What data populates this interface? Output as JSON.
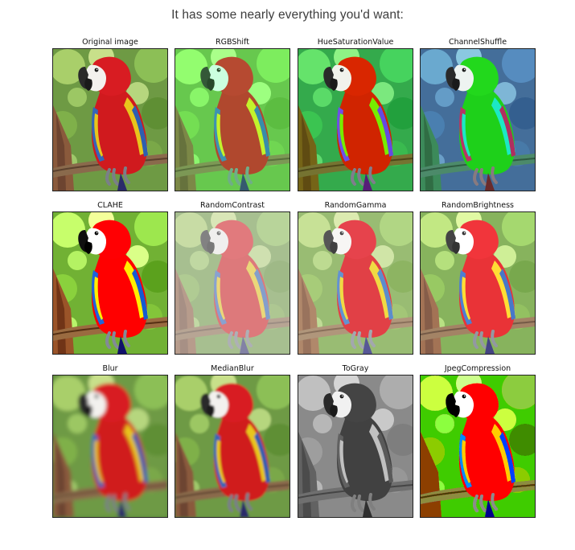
{
  "page": {
    "heading": "It has some nearly everything you'd want:"
  },
  "panels": [
    {
      "title": "Original image",
      "filter": "orig"
    },
    {
      "title": "RGBShift",
      "filter": "rgbshift"
    },
    {
      "title": "HueSaturationValue",
      "filter": "hsv"
    },
    {
      "title": "ChannelShuffle",
      "filter": "shuffle"
    },
    {
      "title": "CLAHE",
      "filter": "clahe"
    },
    {
      "title": "RandomContrast",
      "filter": "contrast"
    },
    {
      "title": "RandomGamma",
      "filter": "gamma"
    },
    {
      "title": "RandomBrightness",
      "filter": "bright"
    },
    {
      "title": "Blur",
      "filter": "blur"
    },
    {
      "title": "MedianBlur",
      "filter": "median"
    },
    {
      "title": "ToGray",
      "filter": "gray"
    },
    {
      "title": "JpegCompression",
      "filter": "jpeg"
    }
  ]
}
